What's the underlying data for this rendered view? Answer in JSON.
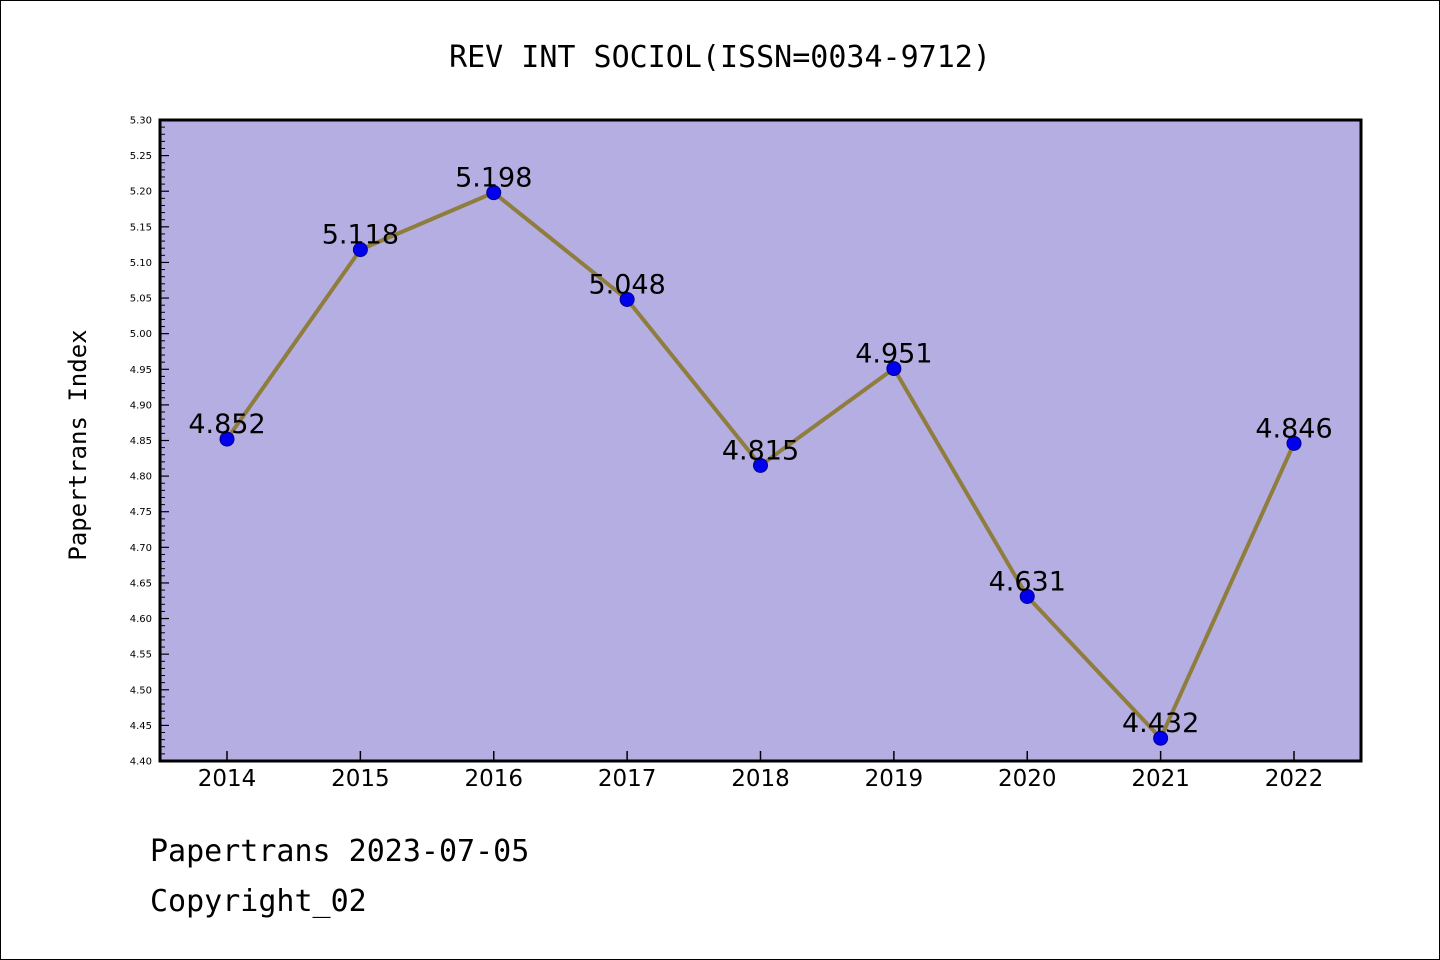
{
  "chart_data": {
    "type": "line",
    "title": "REV INT SOCIOL(ISSN=0034-9712)",
    "ylabel": "Papertrans Index",
    "xlabel": "",
    "categories": [
      "2014",
      "2015",
      "2016",
      "2017",
      "2018",
      "2019",
      "2020",
      "2021",
      "2022"
    ],
    "values": [
      4.852,
      5.118,
      5.198,
      5.048,
      4.815,
      4.951,
      4.631,
      4.432,
      4.846
    ],
    "data_labels": [
      "4.852",
      "5.118",
      "5.198",
      "5.048",
      "4.815",
      "4.951",
      "4.631",
      "4.432",
      "4.846"
    ],
    "ylim": [
      4.4,
      5.3
    ],
    "y_ticks": [
      "4.40",
      "4.45",
      "4.50",
      "4.55",
      "4.60",
      "4.65",
      "4.70",
      "4.75",
      "4.80",
      "4.85",
      "4.90",
      "4.95",
      "5.00",
      "5.05",
      "5.10",
      "5.15",
      "5.20",
      "5.25",
      "5.30"
    ],
    "grid": false,
    "colors": {
      "plot_background": "#b5aee2",
      "line": "#8e7d3c",
      "marker": "#0000ee"
    }
  },
  "footer": {
    "line1": "Papertrans 2023-07-05",
    "line2": "Copyright_02"
  }
}
